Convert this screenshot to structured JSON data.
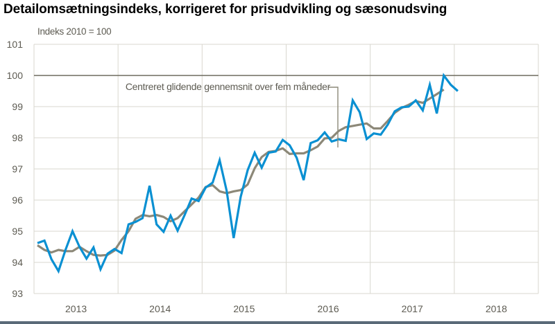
{
  "header": {
    "title": "Detailomsætningsindeks, korrigeret for prisudvikling og sæsonudsving",
    "unit_label": "Indeks 2010 = 100"
  },
  "colors": {
    "index_series": "#0a90d2",
    "moving_average": "#8c8878",
    "reference_line": "#6e6b5f",
    "grid": "#d9d7cf",
    "text": "#5d5b52"
  },
  "chart_data": {
    "type": "line",
    "title": "Detailomsætningsindeks, korrigeret for prisudvikling og sæsonudsving",
    "ylabel": "Indeks 2010 = 100",
    "xlabel": "",
    "ylim": [
      93,
      101
    ],
    "yticks": [
      "93",
      "94",
      "95",
      "96",
      "97",
      "98",
      "99",
      "100",
      "101"
    ],
    "xticks": [
      "2013",
      "2014",
      "2015",
      "2016",
      "2017",
      "2018"
    ],
    "grid": true,
    "reference_line": 100,
    "x_start": "2013-01",
    "frequency": "monthly",
    "annotation": "Centreret glidende gennemsnit over fem måneder",
    "series": [
      {
        "name": "Detailomsætningsindeks",
        "values": [
          94.62,
          94.7,
          94.1,
          93.72,
          94.4,
          95.0,
          94.5,
          94.12,
          94.48,
          93.78,
          94.28,
          94.43,
          94.3,
          95.22,
          95.3,
          95.42,
          96.46,
          95.22,
          94.98,
          95.5,
          95.02,
          95.52,
          96.05,
          95.97,
          96.4,
          96.56,
          97.28,
          96.3,
          94.78,
          96.1,
          96.96,
          97.52,
          97.04,
          97.52,
          97.56,
          97.93,
          97.76,
          97.36,
          96.64,
          97.83,
          97.92,
          98.17,
          97.88,
          97.95,
          97.9,
          99.2,
          98.82,
          97.96,
          98.14,
          98.1,
          98.42,
          98.85,
          98.98,
          99.0,
          99.2,
          98.88,
          99.7,
          98.78,
          100.0,
          99.7,
          99.5
        ]
      },
      {
        "name": "Centreret glidende gennemsnit over fem måneder",
        "values": [
          94.55,
          94.4,
          94.32,
          94.4,
          94.36,
          94.36,
          94.5,
          94.36,
          94.24,
          94.22,
          94.24,
          94.38,
          94.72,
          95.0,
          95.4,
          95.52,
          95.48,
          95.52,
          95.46,
          95.32,
          95.42,
          95.64,
          95.86,
          96.08,
          96.42,
          96.48,
          96.28,
          96.22,
          96.28,
          96.32,
          96.5,
          97.02,
          97.38,
          97.55,
          97.58,
          97.66,
          97.48,
          97.5,
          97.5,
          97.6,
          97.72,
          97.98,
          98.0,
          98.22,
          98.34,
          98.38,
          98.42,
          98.46,
          98.3,
          98.3,
          98.54,
          98.8,
          98.96,
          99.06,
          99.18,
          99.12,
          99.26,
          99.4,
          99.55
        ]
      }
    ]
  }
}
